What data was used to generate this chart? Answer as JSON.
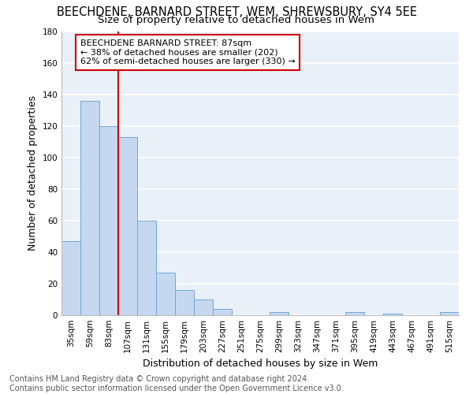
{
  "title_line1": "BEECHDENE, BARNARD STREET, WEM, SHREWSBURY, SY4 5EE",
  "title_line2": "Size of property relative to detached houses in Wem",
  "xlabel": "Distribution of detached houses by size in Wem",
  "ylabel": "Number of detached properties",
  "footer_line1": "Contains HM Land Registry data © Crown copyright and database right 2024.",
  "footer_line2": "Contains public sector information licensed under the Open Government Licence v3.0.",
  "annotation_line1": "BEECHDENE BARNARD STREET: 87sqm",
  "annotation_line2": "← 38% of detached houses are smaller (202)",
  "annotation_line3": "62% of semi-detached houses are larger (330) →",
  "categories": [
    "35sqm",
    "59sqm",
    "83sqm",
    "107sqm",
    "131sqm",
    "155sqm",
    "179sqm",
    "203sqm",
    "227sqm",
    "251sqm",
    "275sqm",
    "299sqm",
    "323sqm",
    "347sqm",
    "371sqm",
    "395sqm",
    "419sqm",
    "443sqm",
    "467sqm",
    "491sqm",
    "515sqm"
  ],
  "values": [
    47,
    136,
    120,
    113,
    60,
    27,
    16,
    10,
    4,
    0,
    0,
    2,
    0,
    0,
    0,
    2,
    0,
    1,
    0,
    0,
    2
  ],
  "bar_color": "#c5d8f0",
  "bar_edge_color": "#6fa8d4",
  "vertical_line_x": 2.5,
  "vertical_line_color": "#cc0000",
  "annotation_box_color": "#cc0000",
  "ylim": [
    0,
    180
  ],
  "yticks": [
    0,
    20,
    40,
    60,
    80,
    100,
    120,
    140,
    160,
    180
  ],
  "bg_color": "#eaf0f8",
  "grid_color": "#ffffff",
  "title_fontsize": 10.5,
  "subtitle_fontsize": 9.5,
  "axis_label_fontsize": 9,
  "tick_fontsize": 7.5,
  "annotation_fontsize": 8,
  "footer_fontsize": 7
}
